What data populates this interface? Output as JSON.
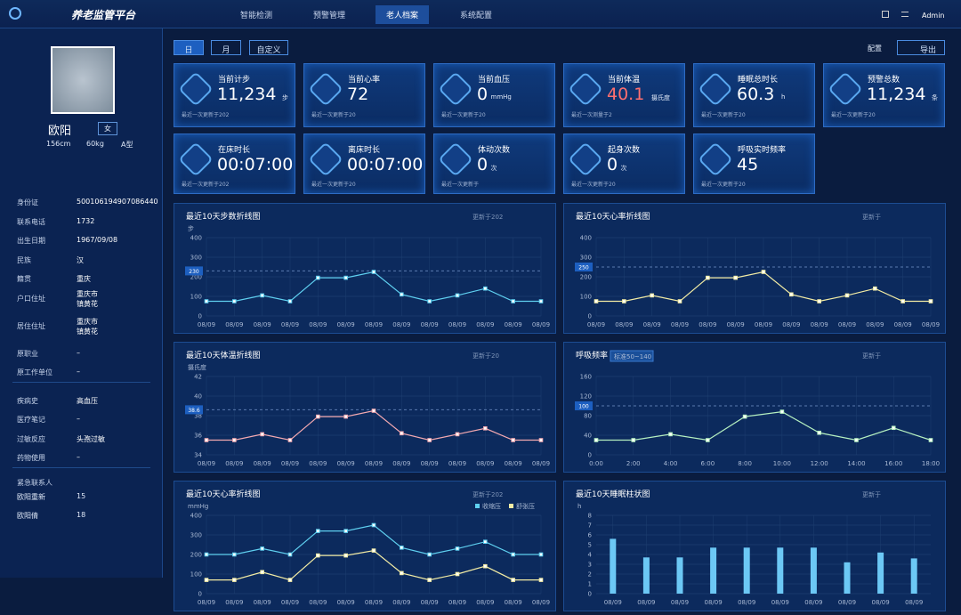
{
  "header": {
    "title": "养老监管平台",
    "nav": [
      "智能检测",
      "预警管理",
      "老人档案",
      "系统配置"
    ],
    "active_nav": 2,
    "user": "Admin"
  },
  "profile": {
    "name": "欧阳",
    "gender": "女",
    "height": "156cm",
    "weight": "60kg",
    "blood": "A型"
  },
  "info": [
    [
      {
        "label": "身份证",
        "value": [
          "500106194907086440"
        ]
      },
      {
        "label": "联系电话",
        "value": [
          "1732"
        ]
      },
      {
        "label": "出生日期",
        "value": [
          "1967/09/08"
        ]
      },
      {
        "label": "民族",
        "value": [
          "汉"
        ]
      },
      {
        "label": "籍贯",
        "value": [
          "重庆"
        ]
      },
      {
        "label": "户口住址",
        "value": [
          "重庆市",
          "镇黄花"
        ]
      },
      {
        "label": "居住住址",
        "value": [
          "重庆市",
          "镇黄花"
        ]
      },
      {
        "label": "原职业",
        "value": [
          "–"
        ]
      },
      {
        "label": "原工作单位",
        "value": [
          "–"
        ]
      }
    ],
    [
      {
        "label": "疾病史",
        "value": [
          "高血压"
        ]
      },
      {
        "label": "医疗笔记",
        "value": [
          "–"
        ]
      },
      {
        "label": "过敏反应",
        "value": [
          "头孢过敏"
        ]
      },
      {
        "label": "药物使用",
        "value": [
          "–"
        ]
      }
    ]
  ],
  "contacts": {
    "title": "紧急联系人",
    "items": [
      {
        "name": "欧阳重新",
        "phone": "15"
      },
      {
        "name": "欧阳倩",
        "phone": "18"
      }
    ]
  },
  "toolbar": {
    "tabs": [
      "日",
      "月",
      "自定义"
    ],
    "config": "配置",
    "export": "导出"
  },
  "cards": [
    {
      "title": "当前计步",
      "value": "11,234",
      "unit": "步",
      "note": "最近一次更新于202"
    },
    {
      "title": "当前心率",
      "value": "72",
      "unit": "",
      "note": "最近一次更新于20"
    },
    {
      "title": "当前血压",
      "value": "0",
      "unit": "mmHg",
      "note": "最近一次更新于20"
    },
    {
      "title": "当前体温",
      "value": "40.1",
      "unit": "摄氏度",
      "note": "最近一次测量于2",
      "value_color": "#ff6f6f"
    },
    {
      "title": "睡眠总时长",
      "value": "60.3",
      "unit": "h",
      "note": "最近一次更新于20"
    },
    {
      "title": "预警总数",
      "value": "11,234",
      "unit": "条",
      "note": "最近一次更新于20"
    },
    {
      "title": "在床时长",
      "value": "00:07:00",
      "unit": "",
      "note": "最近一次更新于202"
    },
    {
      "title": "离床时长",
      "value": "00:07:00",
      "unit": "",
      "note": "最近一次更新于20"
    },
    {
      "title": "体动次数",
      "value": "0",
      "unit": "次",
      "note": "最近一次更新于"
    },
    {
      "title": "起身次数",
      "value": "0",
      "unit": "次",
      "note": "最近一次更新于20"
    },
    {
      "title": "呼吸实时频率",
      "value": "45",
      "unit": "",
      "note": "最近一次更新于20"
    }
  ],
  "charts": [
    {
      "type": "line",
      "title": "最近10天步数折线图",
      "updated": "更新于202",
      "unit": "步",
      "ylim": [
        0,
        400
      ],
      "yticks": [
        0,
        100,
        200,
        300,
        400
      ],
      "ref": 230,
      "categories": [
        "08/09",
        "08/09",
        "08/09",
        "08/09",
        "08/09",
        "08/09",
        "08/09",
        "08/09",
        "08/09",
        "08/09",
        "08/09",
        "08/09",
        "08/09"
      ],
      "series": [
        {
          "color": "#5fd0f0",
          "values": [
            75,
            75,
            105,
            75,
            195,
            195,
            225,
            110,
            75,
            105,
            140,
            75,
            75
          ]
        }
      ]
    },
    {
      "type": "line",
      "title": "最近10天心率折线图",
      "updated": "更新于",
      "unit": "",
      "ylim": [
        0,
        400
      ],
      "yticks": [
        0,
        100,
        200,
        300,
        400
      ],
      "ref": 250,
      "categories": [
        "08/09",
        "08/09",
        "08/09",
        "08/09",
        "08/09",
        "08/09",
        "08/09",
        "08/09",
        "08/09",
        "08/09",
        "08/09",
        "08/09",
        "08/09"
      ],
      "series": [
        {
          "color": "#f3eca4",
          "values": [
            75,
            75,
            105,
            75,
            195,
            195,
            225,
            110,
            75,
            105,
            140,
            75,
            75
          ]
        }
      ]
    },
    {
      "type": "line",
      "title": "最近10天体温折线图",
      "updated": "更新于20",
      "unit": "摄氏度",
      "ylim": [
        34,
        42
      ],
      "yticks": [
        34,
        36,
        38,
        40,
        42
      ],
      "ref": 38.6,
      "categories": [
        "08/09",
        "08/09",
        "08/09",
        "08/09",
        "08/09",
        "08/09",
        "08/09",
        "08/09",
        "08/09",
        "08/09",
        "08/09",
        "08/09",
        "08/09"
      ],
      "series": [
        {
          "color": "#f4a9b0",
          "values": [
            35.5,
            35.5,
            36.1,
            35.5,
            37.9,
            37.9,
            38.5,
            36.2,
            35.5,
            36.1,
            36.7,
            35.5,
            35.5
          ]
        }
      ]
    },
    {
      "type": "line",
      "title": "呼吸频率",
      "badge": "标准50~140",
      "updated": "更新于",
      "unit": "",
      "ylim": [
        0,
        160
      ],
      "yticks": [
        0,
        40,
        80,
        120,
        160
      ],
      "ref": 100,
      "categories": [
        "0:00",
        "2:00",
        "4:00",
        "6:00",
        "8:00",
        "10:00",
        "12:00",
        "14:00",
        "16:00",
        "18:00"
      ],
      "series": [
        {
          "color": "#b5f0c0",
          "values": [
            30,
            30,
            42,
            30,
            78,
            88,
            45,
            30,
            55,
            30
          ]
        }
      ]
    },
    {
      "type": "line",
      "title": "最近10天心率折线图",
      "updated": "更新于202",
      "unit": "mmHg",
      "ylim": [
        0,
        400
      ],
      "yticks": [
        0,
        100,
        200,
        300,
        400
      ],
      "categories": [
        "08/09",
        "08/09",
        "08/09",
        "08/09",
        "08/09",
        "08/09",
        "08/09",
        "08/09",
        "08/09",
        "08/09",
        "08/09",
        "08/09",
        "08/09"
      ],
      "series": [
        {
          "name": "收缩压",
          "color": "#5fd0f0",
          "values": [
            200,
            200,
            230,
            200,
            320,
            320,
            350,
            235,
            200,
            230,
            265,
            200,
            200
          ]
        },
        {
          "name": "舒张压",
          "color": "#f3eca4",
          "values": [
            70,
            70,
            110,
            70,
            195,
            195,
            220,
            105,
            70,
            100,
            140,
            70,
            70
          ]
        }
      ]
    },
    {
      "type": "bar",
      "title": "最近10天睡眠柱状图",
      "updated": "更新于",
      "unit": "h",
      "ylim": [
        0,
        8
      ],
      "yticks": [
        0,
        1,
        2,
        3,
        4,
        5,
        6,
        7,
        8
      ],
      "categories": [
        "08/09",
        "08/09",
        "08/09",
        "08/09",
        "08/09",
        "08/09",
        "08/09",
        "08/09",
        "08/09",
        "08/09"
      ],
      "series": [
        {
          "color": "#6cc8f5",
          "values": [
            5.6,
            3.7,
            3.7,
            4.7,
            4.7,
            4.7,
            4.7,
            3.2,
            4.2,
            3.6
          ]
        }
      ]
    }
  ]
}
